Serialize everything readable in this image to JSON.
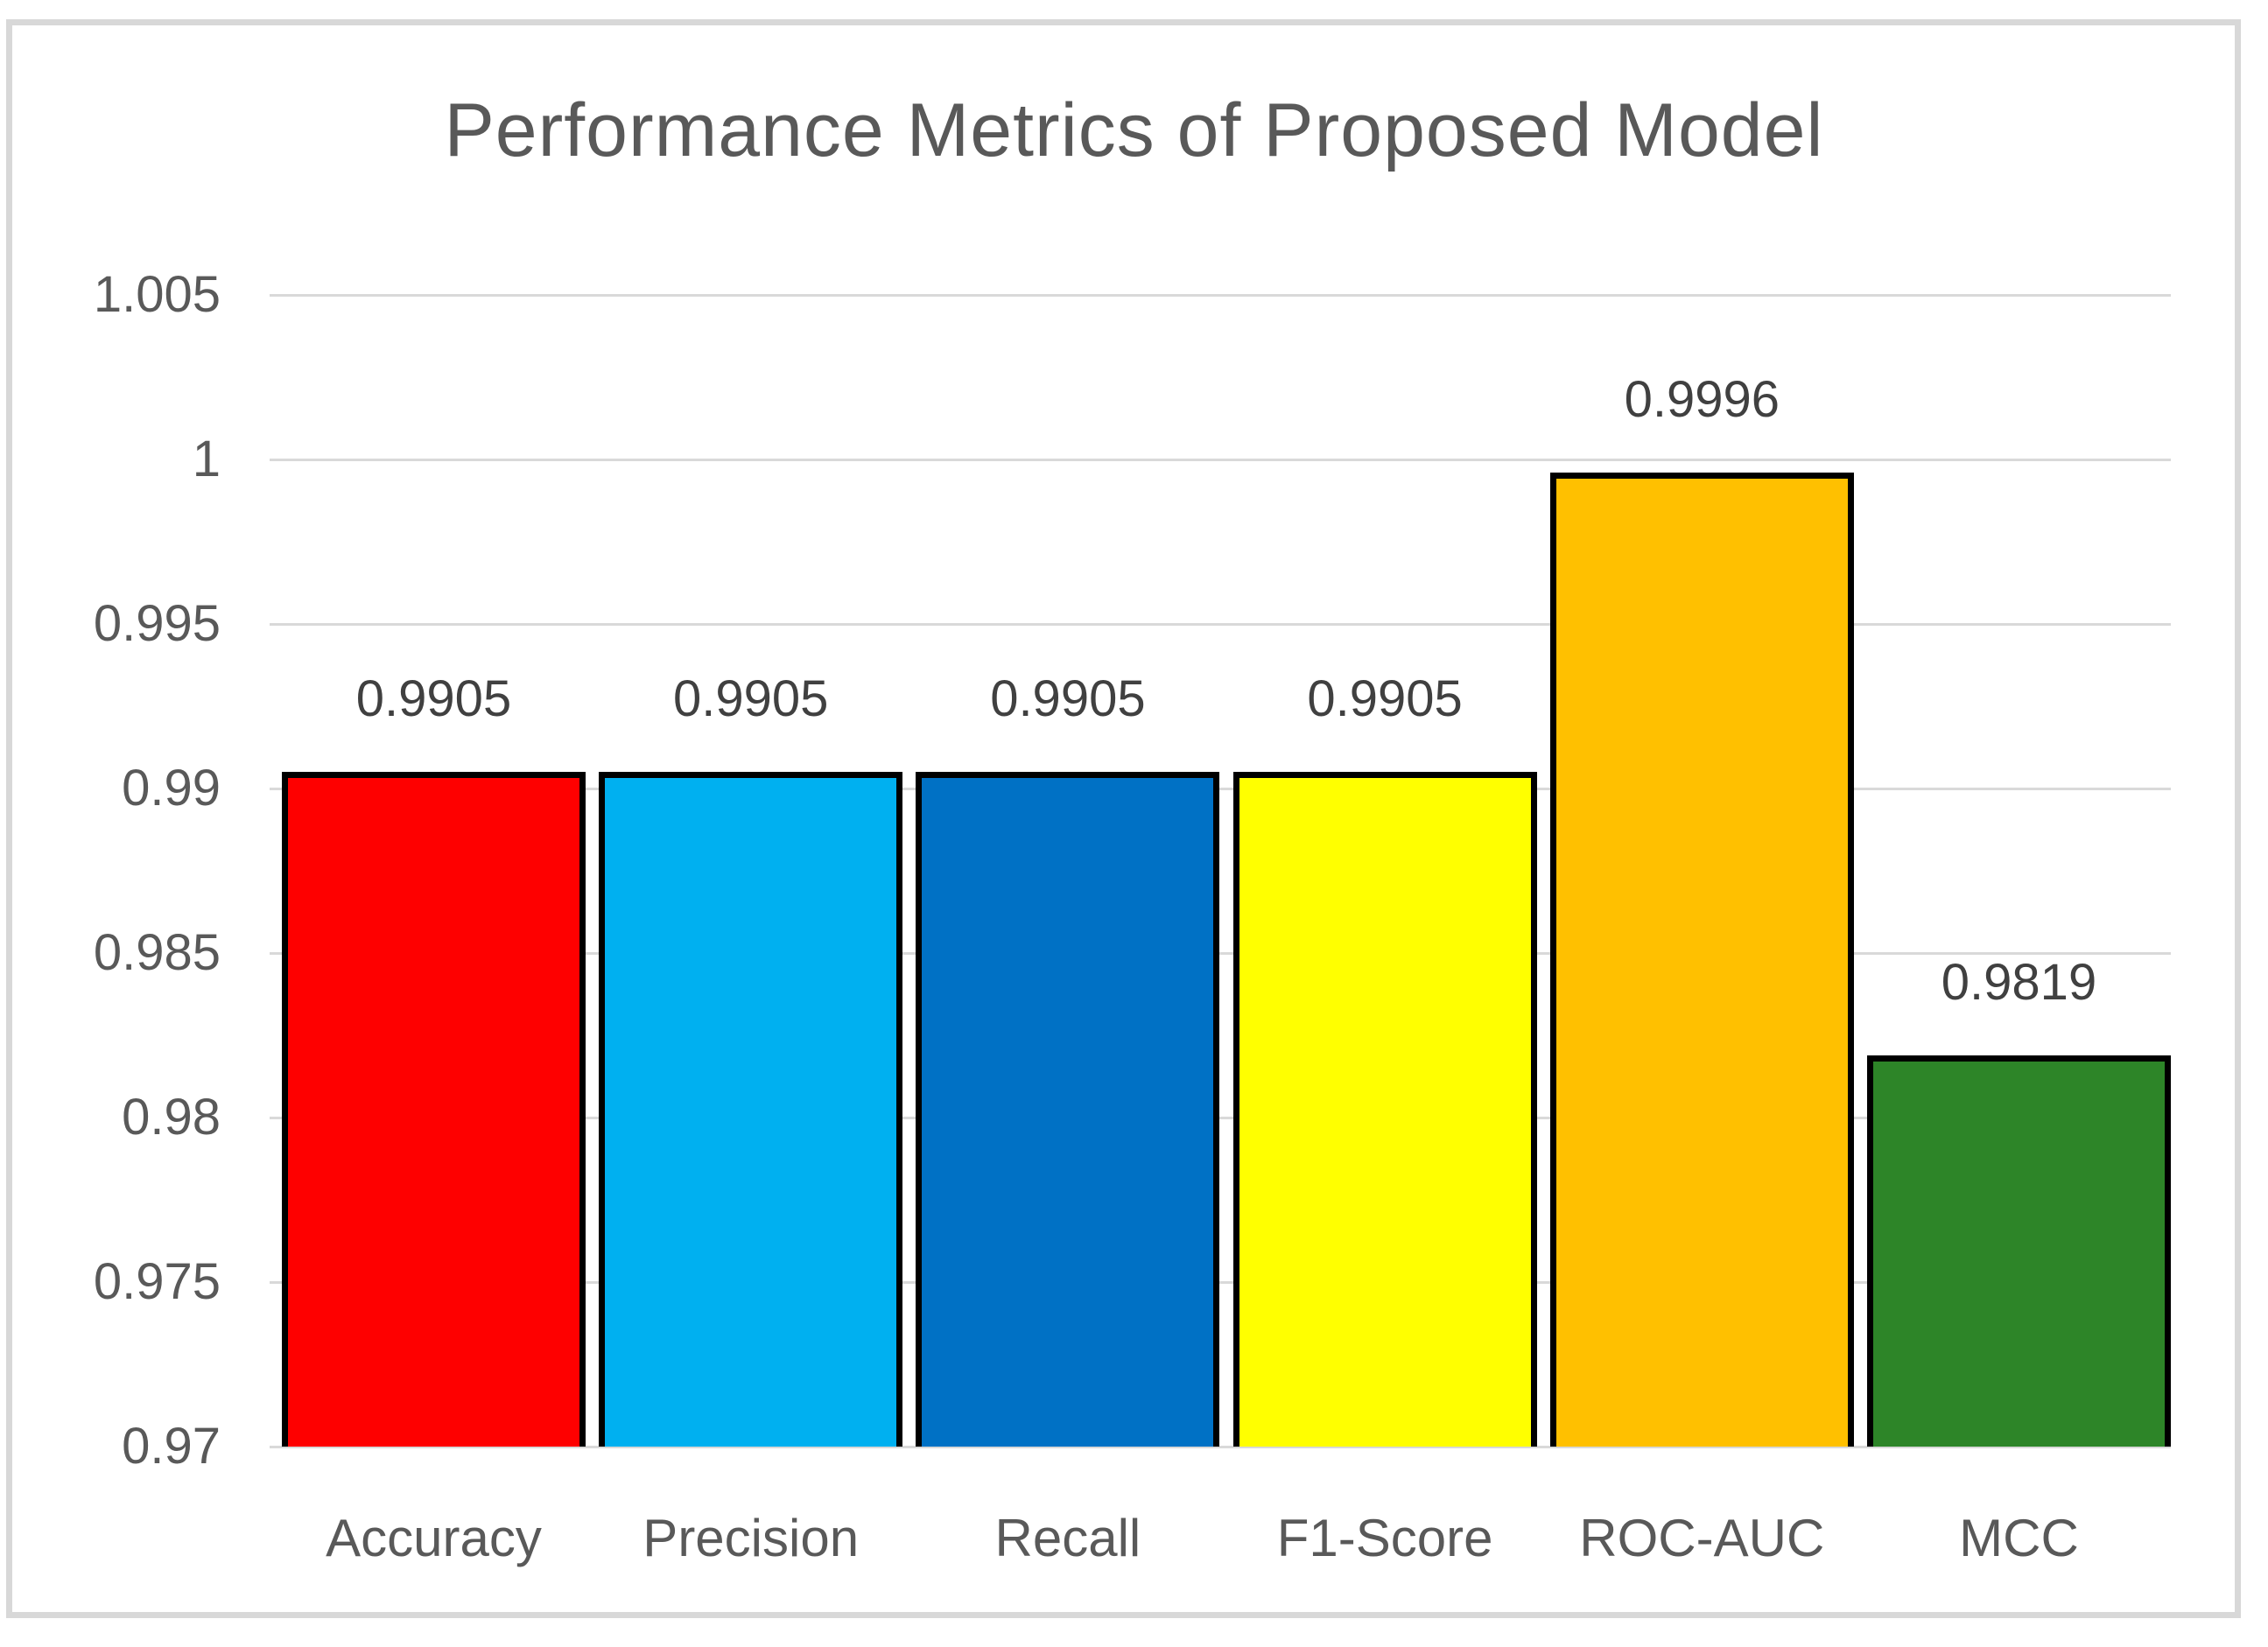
{
  "chart_data": {
    "type": "bar",
    "title": "Performance Metrics of Proposed Model",
    "categories": [
      "Accuracy",
      "Precision",
      "Recall",
      "F1-Score",
      "ROC-AUC",
      "MCC"
    ],
    "values": [
      0.9905,
      0.9905,
      0.9905,
      0.9905,
      0.9996,
      0.9819
    ],
    "data_labels": [
      "0.9905",
      "0.9905",
      "0.9905",
      "0.9905",
      "0.9996",
      "0.9819"
    ],
    "bar_colors": [
      "#FE0000",
      "#00B0F0",
      "#0071C5",
      "#FFFF00",
      "#FFC000",
      "#2D8528"
    ],
    "bar_border_color": "#000000",
    "xlabel": "",
    "ylabel": "",
    "ylim": [
      0.97,
      1.005
    ],
    "ytick_values": [
      0.97,
      0.975,
      0.98,
      0.985,
      0.99,
      0.995,
      1,
      1.005
    ],
    "ytick_labels": [
      "0.97",
      "0.975",
      "0.98",
      "0.985",
      "0.99",
      "0.995",
      "1",
      "1.005"
    ],
    "grid": true,
    "gridline_color": "#D9D9D9",
    "axis_text_color": "#595959",
    "data_label_color": "#404040",
    "title_color": "#595959",
    "canvas_border_color": "#D8D8D8",
    "legend_position": "none"
  }
}
